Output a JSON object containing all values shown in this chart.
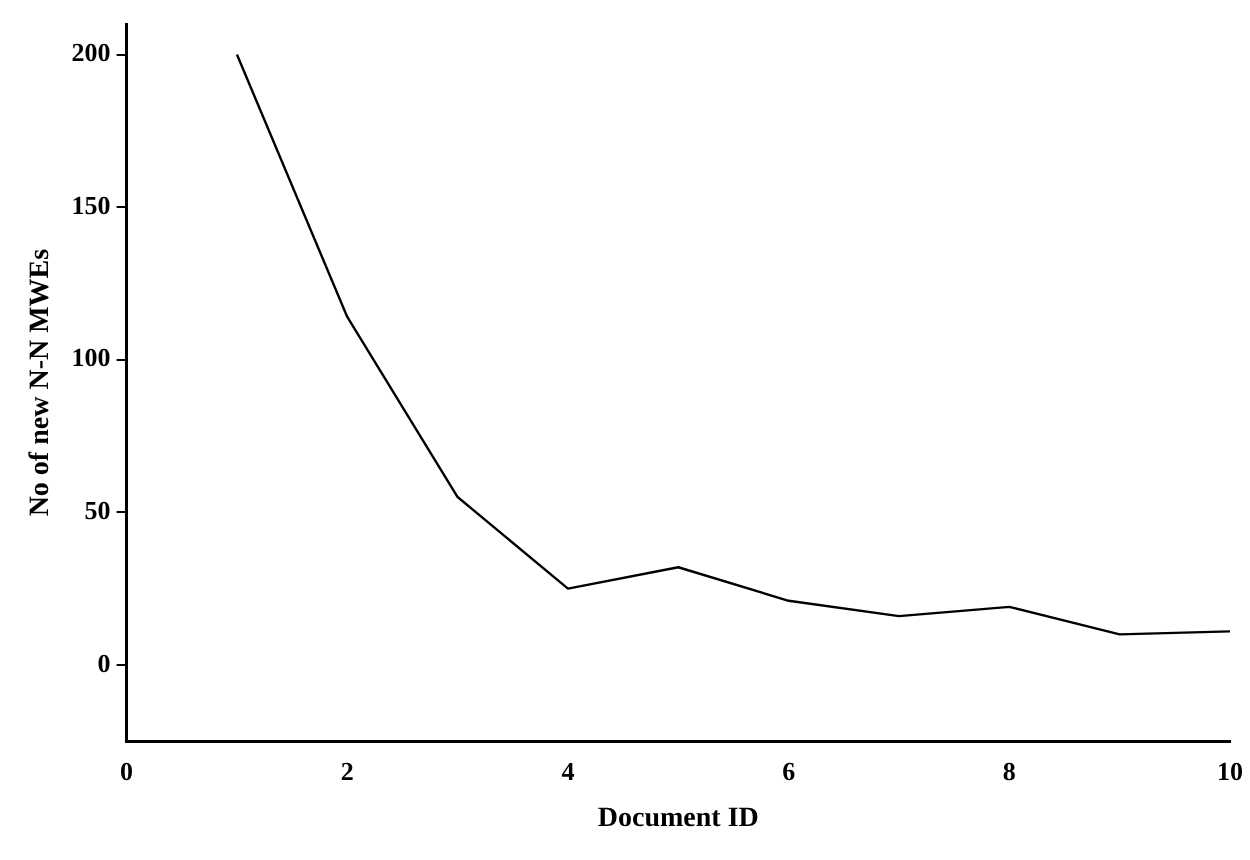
{
  "chart_data": {
    "type": "line",
    "xlabel": "Document ID",
    "ylabel": "No of new N-N MWEs",
    "x": [
      1,
      2,
      3,
      4,
      5,
      6,
      7,
      8,
      9,
      10
    ],
    "series": [
      {
        "color": "#000000",
        "values": [
          200,
          114,
          55,
          25,
          32,
          21,
          16,
          19,
          10,
          11
        ]
      }
    ],
    "xlim": [
      0,
      10
    ],
    "xticks": [
      0,
      2,
      4,
      6,
      8,
      10
    ],
    "ylim": [
      -25,
      210
    ],
    "yticks": [
      0,
      50,
      100,
      150,
      200
    ],
    "grid": false,
    "legend": false,
    "marker": "none",
    "line_style": "solid"
  }
}
